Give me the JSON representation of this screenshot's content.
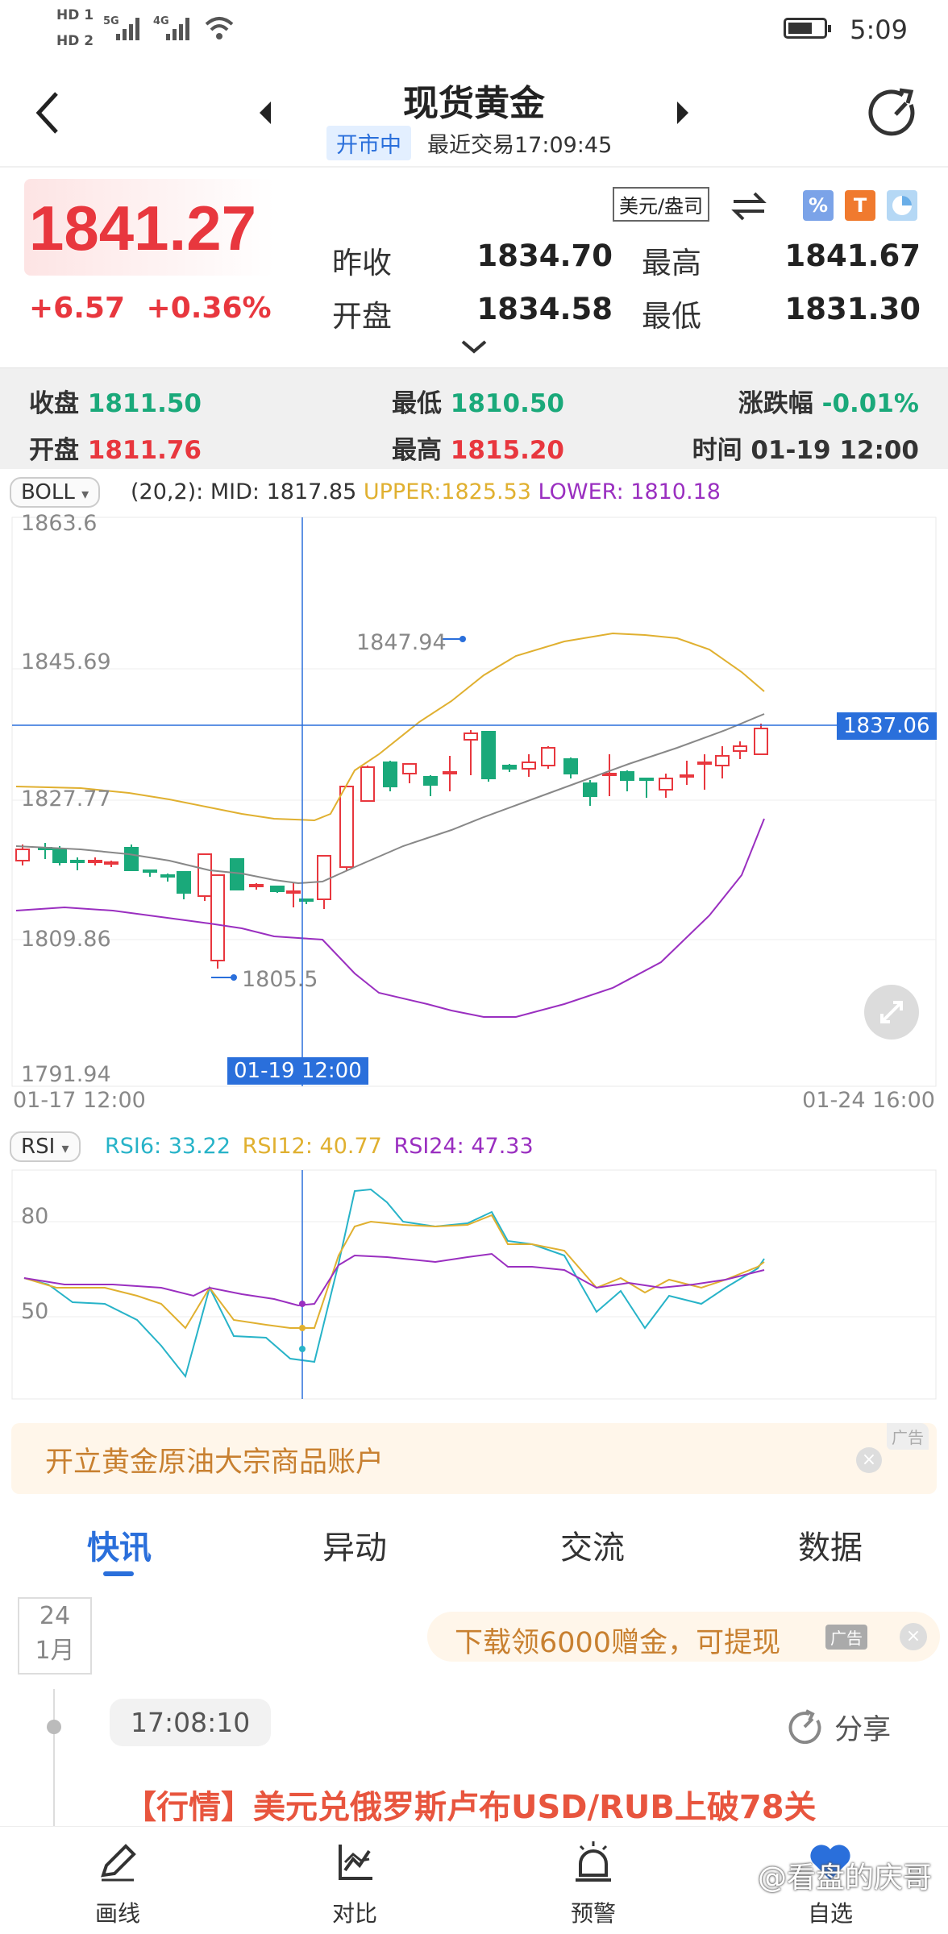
{
  "status_bar": {
    "hd1": "HD 1",
    "hd2": "HD 2",
    "net1": "5G",
    "net2": "4G",
    "time": "5:09",
    "battery_level": 0.7
  },
  "header": {
    "title": "现货黄金",
    "status": "开市中",
    "last_trade": "最近交易17:09:45"
  },
  "quote": {
    "price": "1841.27",
    "change": "+6.57",
    "change_pct": "+0.36%",
    "currency": "美元/盎司",
    "stats": [
      {
        "label": "昨收",
        "value": "1834.70"
      },
      {
        "label": "最高",
        "value": "1841.67"
      },
      {
        "label": "开盘",
        "value": "1834.58"
      },
      {
        "label": "最低",
        "value": "1831.30"
      }
    ]
  },
  "session": {
    "close_label": "收盘",
    "close": "1811.50",
    "low_label": "最低",
    "low": "1810.50",
    "chg_label": "涨跌幅",
    "chg": "-0.01%",
    "open_label": "开盘",
    "open": "1811.76",
    "high_label": "最高",
    "high": "1815.20",
    "time_label": "时间",
    "time": "01-19 12:00"
  },
  "boll": {
    "name": "BOLL",
    "params": "(20,2):",
    "mid_label": "MID:",
    "mid": "1817.85",
    "upper_label": "UPPER:",
    "upper": "1825.53",
    "lower_label": "LOWER:",
    "lower": "1810.18",
    "y_ticks": [
      "1863.6",
      "1845.69",
      "1827.77",
      "1809.86",
      "1791.94"
    ],
    "x_start": "01-17 12:00",
    "x_end": "01-24 16:00",
    "crosshair_time": "01-19 12:00",
    "crosshair_price": "1837.06",
    "max_label": "1847.94",
    "min_label": "1805.5"
  },
  "rsi": {
    "name": "RSI",
    "rsi6_label": "RSI6:",
    "rsi6": "33.22",
    "rsi12_label": "RSI12:",
    "rsi12": "40.77",
    "rsi24_label": "RSI24:",
    "rsi24": "47.33",
    "y_ticks": [
      "80",
      "50"
    ]
  },
  "ad_banner": {
    "text": "开立黄金原油大宗商品账户",
    "badge": "广告"
  },
  "tabs": [
    "快讯",
    "异动",
    "交流",
    "数据"
  ],
  "news": {
    "day": "24",
    "month": "1月",
    "ad_text": "下载领6000赠金，可提现",
    "ad_badge": "广告",
    "time": "17:08:10",
    "share": "分享",
    "headline": "【行情】美元兑俄罗斯卢布USD/RUB上破78关"
  },
  "bottom_nav": [
    {
      "label": "画线",
      "icon": "pen-icon"
    },
    {
      "label": "对比",
      "icon": "chart-compare-icon"
    },
    {
      "label": "预警",
      "icon": "alarm-icon"
    },
    {
      "label": "自选",
      "icon": "heart-icon"
    }
  ],
  "watermark": "@看盘的庆哥",
  "colors": {
    "up": "#e8373e",
    "down": "#1aa97a",
    "accent": "#2a6fdb",
    "upper": "#e0b030",
    "lower": "#9a2fc0",
    "mid": "#888888",
    "rsi6": "#27b3c8"
  }
}
